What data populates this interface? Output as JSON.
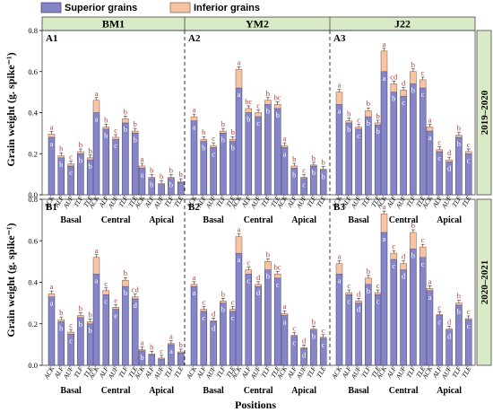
{
  "colors": {
    "superior": "#8585c8",
    "superior_edge": "#3a3a6a",
    "inferior": "#f7c3a3",
    "inferior_edge": "#7a5a4a",
    "header_bg": "#d9ebc6",
    "panel_edge": "#444444",
    "sig_inferior": "#b33a2a"
  },
  "legend": [
    {
      "key": "superior",
      "label": "Superior grains"
    },
    {
      "key": "inferior",
      "label": "Inferior grains"
    }
  ],
  "cultivars": [
    "BM1",
    "YM2",
    "J22"
  ],
  "years": [
    "2019–2020",
    "2020–2021"
  ],
  "chart_data": {
    "type": "bar",
    "stacked": true,
    "ylabel": "Grain weight (g. spike⁻¹)",
    "xlabel": "Positions",
    "ylim": [
      0,
      0.8
    ],
    "yticks": [
      0.0,
      0.2,
      0.4,
      0.6,
      0.8
    ],
    "categories": [
      "ACK",
      "ALF",
      "AUF",
      "TLF",
      "TLE"
    ],
    "positions": [
      "Basal",
      "Central",
      "Apical"
    ],
    "series_names": [
      "Superior grains",
      "Inferior grains"
    ],
    "panels": [
      {
        "id": "A1",
        "row": 0,
        "col": 0,
        "groups": [
          {
            "superior": [
              0.28,
              0.18,
              0.14,
              0.2,
              0.17
            ],
            "inferior": [
              0.015,
              0.01,
              0.01,
              0.01,
              0.01
            ],
            "sig_inf": [
              "a",
              "b",
              "c",
              "b",
              "b"
            ],
            "sig_sup": [
              "a",
              "b",
              "c",
              "b",
              "b"
            ]
          },
          {
            "superior": [
              0.4,
              0.32,
              0.27,
              0.35,
              0.3
            ],
            "inferior": [
              0.06,
              0.01,
              0.01,
              0.02,
              0.01
            ],
            "sig_inf": [
              "a",
              "b",
              "c",
              "b",
              "b"
            ],
            "sig_sup": [
              "a",
              "b",
              "c",
              "b",
              "b"
            ]
          },
          {
            "superior": [
              0.13,
              0.08,
              0.05,
              0.08,
              0.06
            ],
            "inferior": [
              0.01,
              0.005,
              0.005,
              0.005,
              0.005
            ],
            "sig_inf": [
              "a",
              "b",
              "b",
              "b",
              "b"
            ],
            "sig_sup": [
              "a",
              "b",
              "c",
              "b",
              "c"
            ]
          }
        ]
      },
      {
        "id": "A2",
        "row": 0,
        "col": 1,
        "groups": [
          {
            "superior": [
              0.36,
              0.26,
              0.23,
              0.3,
              0.26
            ],
            "inferior": [
              0.02,
              0.01,
              0.01,
              0.01,
              0.01
            ],
            "sig_inf": [
              "a",
              "b",
              "c",
              "b",
              "b"
            ],
            "sig_sup": [
              "a",
              "b",
              "c",
              "b",
              "b"
            ]
          },
          {
            "superior": [
              0.52,
              0.4,
              0.38,
              0.44,
              0.42
            ],
            "inferior": [
              0.09,
              0.02,
              0.02,
              0.02,
              0.02
            ],
            "sig_inf": [
              "a",
              "bc",
              "c",
              "b",
              "bc"
            ],
            "sig_sup": [
              "a",
              "b",
              "c",
              "b",
              "b"
            ]
          },
          {
            "superior": [
              0.23,
              0.13,
              0.08,
              0.14,
              0.12
            ],
            "inferior": [
              0.01,
              0.01,
              0.005,
              0.005,
              0.005
            ],
            "sig_inf": [
              "a",
              "b",
              "c",
              "b",
              "b"
            ],
            "sig_sup": [
              "a",
              "b",
              "c",
              "b",
              "b"
            ]
          }
        ]
      },
      {
        "id": "A3",
        "row": 0,
        "col": 2,
        "groups": [
          {
            "superior": [
              0.44,
              0.35,
              0.32,
              0.38,
              0.34
            ],
            "inferior": [
              0.06,
              0.01,
              0.01,
              0.03,
              0.01
            ],
            "sig_inf": [
              "a",
              "b",
              "c",
              "b",
              "b"
            ],
            "sig_sup": [
              "a",
              "b",
              "c",
              "b",
              "b"
            ]
          },
          {
            "superior": [
              0.6,
              0.5,
              0.48,
              0.54,
              0.52
            ],
            "inferior": [
              0.1,
              0.04,
              0.03,
              0.06,
              0.04
            ],
            "sig_inf": [
              "a",
              "cd",
              "d",
              "b",
              "c"
            ],
            "sig_sup": [
              "a",
              "b",
              "c",
              "b",
              "c"
            ]
          },
          {
            "superior": [
              0.31,
              0.21,
              0.16,
              0.28,
              0.2
            ],
            "inferior": [
              0.02,
              0.01,
              0.01,
              0.01,
              0.01
            ],
            "sig_inf": [
              "a",
              "c",
              "d",
              "b",
              "c"
            ],
            "sig_sup": [
              "a",
              "c",
              "d",
              "b",
              "c"
            ]
          }
        ]
      },
      {
        "id": "B1",
        "row": 1,
        "col": 0,
        "groups": [
          {
            "superior": [
              0.33,
              0.21,
              0.15,
              0.23,
              0.2
            ],
            "inferior": [
              0.015,
              0.01,
              0.01,
              0.01,
              0.01
            ],
            "sig_inf": [
              "a",
              "b",
              "c",
              "b",
              "b"
            ],
            "sig_sup": [
              "a",
              "b",
              "c",
              "b",
              "b"
            ]
          },
          {
            "superior": [
              0.44,
              0.34,
              0.27,
              0.38,
              0.32
            ],
            "inferior": [
              0.08,
              0.02,
              0.01,
              0.03,
              0.01
            ],
            "sig_inf": [
              "a",
              "c",
              "e",
              "b",
              "cd"
            ],
            "sig_sup": [
              "a",
              "c",
              "e",
              "b",
              "d"
            ]
          },
          {
            "superior": [
              0.07,
              0.05,
              0.03,
              0.1,
              0.06
            ],
            "inferior": [
              0.005,
              0.005,
              0.005,
              0.005,
              0.005
            ],
            "sig_inf": [
              "a",
              "b",
              "c",
              "a",
              "b"
            ],
            "sig_sup": [
              "b",
              "c",
              "d",
              "a",
              "c"
            ]
          }
        ]
      },
      {
        "id": "B2",
        "row": 1,
        "col": 1,
        "groups": [
          {
            "superior": [
              0.38,
              0.26,
              0.21,
              0.3,
              0.26
            ],
            "inferior": [
              0.01,
              0.01,
              0.005,
              0.01,
              0.01
            ],
            "sig_inf": [
              "a",
              "c",
              "d",
              "b",
              "c"
            ],
            "sig_sup": [
              "a",
              "c",
              "d",
              "b",
              "c"
            ]
          },
          {
            "superior": [
              0.54,
              0.44,
              0.38,
              0.46,
              0.42
            ],
            "inferior": [
              0.08,
              0.02,
              0.01,
              0.04,
              0.02
            ],
            "sig_inf": [
              "a",
              "c",
              "d",
              "b",
              "bc"
            ],
            "sig_sup": [
              "a",
              "c",
              "d",
              "b",
              "c"
            ]
          },
          {
            "superior": [
              0.24,
              0.14,
              0.08,
              0.17,
              0.13
            ],
            "inferior": [
              0.01,
              0.005,
              0.005,
              0.005,
              0.005
            ],
            "sig_inf": [
              "a",
              "c",
              "d",
              "b",
              "c"
            ],
            "sig_sup": [
              "a",
              "c",
              "d",
              "b",
              "c"
            ]
          }
        ]
      },
      {
        "id": "B3",
        "row": 1,
        "col": 2,
        "groups": [
          {
            "superior": [
              0.44,
              0.34,
              0.3,
              0.39,
              0.34
            ],
            "inferior": [
              0.05,
              0.01,
              0.01,
              0.03,
              0.01
            ],
            "sig_inf": [
              "a",
              "c",
              "d",
              "b",
              "c"
            ],
            "sig_sup": [
              "a",
              "c",
              "d",
              "b",
              "c"
            ]
          },
          {
            "superior": [
              0.64,
              0.51,
              0.46,
              0.56,
              0.52
            ],
            "inferior": [
              0.09,
              0.03,
              0.03,
              0.08,
              0.05
            ],
            "sig_inf": [
              "a",
              "c",
              "d",
              "b",
              "c"
            ],
            "sig_sup": [
              "a",
              "c",
              "d",
              "b",
              "c"
            ]
          },
          {
            "superior": [
              0.36,
              0.24,
              0.17,
              0.29,
              0.22
            ],
            "inferior": [
              0.01,
              0.005,
              0.005,
              0.01,
              0.005
            ],
            "sig_inf": [
              "a",
              "c",
              "d",
              "b",
              "c"
            ],
            "sig_sup": [
              "a",
              "c",
              "d",
              "b",
              "c"
            ]
          }
        ]
      }
    ]
  }
}
